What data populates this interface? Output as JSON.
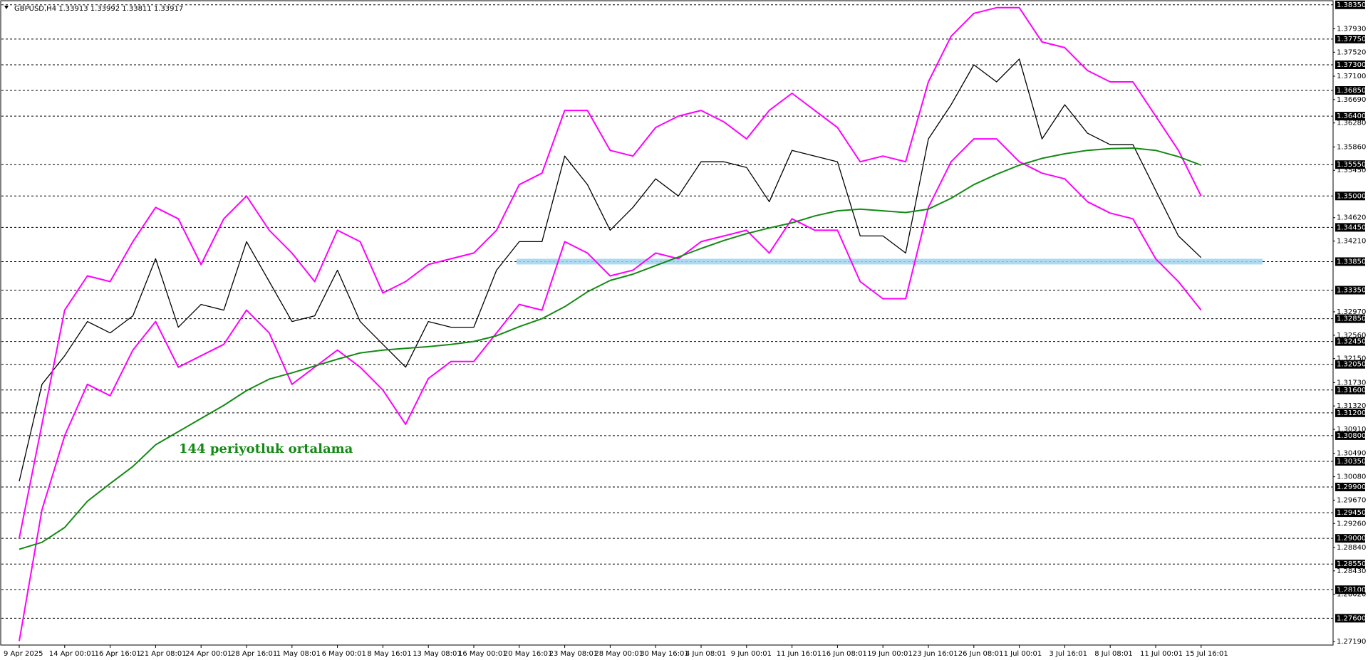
{
  "chart_data": {
    "type": "line",
    "title": "GBPUSD,H4  1.33913 1.33992 1.33811 1.33917",
    "annotation": "144 periyotluk ortalama",
    "categories": [
      "9 Apr 2025",
      null,
      "14 Apr 00:01",
      null,
      "16 Apr 16:01",
      null,
      "21 Apr 08:01",
      null,
      "24 Apr 00:01",
      null,
      "28 Apr 16:01",
      null,
      "1 May 08:01",
      null,
      "6 May 00:01",
      null,
      "8 May 16:01",
      null,
      "13 May 08:01",
      null,
      "16 May 00:01",
      null,
      "20 May 16:01",
      null,
      "23 May 08:01",
      null,
      "28 May 00:01",
      null,
      "30 May 16:01",
      null,
      "4 Jun 08:01",
      null,
      "9 Jun 00:01",
      null,
      "11 Jun 16:01",
      null,
      "16 Jun 08:01",
      null,
      "19 Jun 00:01",
      null,
      "23 Jun 16:01",
      null,
      "26 Jun 08:01",
      null,
      "1 Jul 00:01",
      null,
      "3 Jul 16:01",
      null,
      "8 Jul 08:01",
      null,
      "11 Jul 00:01",
      null,
      "15 Jul 16:01"
    ],
    "series": [
      {
        "color": "#000000",
        "values": [
          1.3,
          1.317,
          1.322,
          1.328,
          1.326,
          1.329,
          1.339,
          1.327,
          1.331,
          1.33,
          1.342,
          1.335,
          1.328,
          1.329,
          1.337,
          1.328,
          1.324,
          1.32,
          1.328,
          1.327,
          1.327,
          1.337,
          1.342,
          1.342,
          1.357,
          1.352,
          1.344,
          1.348,
          1.353,
          1.35,
          1.356,
          1.356,
          1.355,
          1.349,
          1.358,
          1.357,
          1.356,
          1.343,
          1.343,
          1.34,
          1.36,
          1.366,
          1.373,
          1.37,
          1.374,
          1.36,
          1.366,
          1.361,
          1.359,
          1.359,
          1.351,
          1.343,
          1.3392
        ]
      },
      {
        "color": "#ff00ff",
        "values": [
          1.29,
          1.31,
          1.33,
          1.336,
          1.335,
          1.342,
          1.348,
          1.346,
          1.338,
          1.346,
          1.35,
          1.344,
          1.34,
          1.335,
          1.344,
          1.342,
          1.333,
          1.335,
          1.338,
          1.339,
          1.34,
          1.344,
          1.352,
          1.354,
          1.365,
          1.365,
          1.358,
          1.357,
          1.362,
          1.364,
          1.365,
          1.363,
          1.36,
          1.365,
          1.368,
          1.365,
          1.362,
          1.356,
          1.357,
          1.356,
          1.37,
          1.378,
          1.382,
          1.383,
          1.383,
          1.377,
          1.376,
          1.372,
          1.37,
          1.37,
          1.364,
          1.358,
          1.35
        ]
      },
      {
        "color": "#ff00ff",
        "values": [
          1.272,
          1.295,
          1.308,
          1.317,
          1.315,
          1.323,
          1.328,
          1.32,
          1.322,
          1.324,
          1.33,
          1.326,
          1.317,
          1.32,
          1.323,
          1.32,
          1.316,
          1.31,
          1.318,
          1.321,
          1.321,
          1.326,
          1.331,
          1.33,
          1.342,
          1.34,
          1.336,
          1.337,
          1.34,
          1.339,
          1.342,
          1.343,
          1.344,
          1.34,
          1.346,
          1.344,
          1.344,
          1.335,
          1.332,
          1.332,
          1.348,
          1.356,
          1.36,
          1.36,
          1.356,
          1.354,
          1.353,
          1.349,
          1.347,
          1.346,
          1.339,
          1.335,
          1.33
        ]
      },
      {
        "color": "#138a13",
        "values": [
          1.2881,
          1.2893,
          1.2919,
          1.2965,
          1.2996,
          1.3026,
          1.3064,
          1.3087,
          1.311,
          1.3133,
          1.3159,
          1.3179,
          1.319,
          1.3202,
          1.3214,
          1.3225,
          1.323,
          1.3233,
          1.3236,
          1.324,
          1.3245,
          1.3255,
          1.3271,
          1.3285,
          1.3306,
          1.3332,
          1.3352,
          1.3363,
          1.3378,
          1.3393,
          1.3408,
          1.3422,
          1.3434,
          1.3444,
          1.3453,
          1.3465,
          1.3474,
          1.3477,
          1.3474,
          1.3471,
          1.3477,
          1.3496,
          1.352,
          1.3538,
          1.3554,
          1.3566,
          1.3574,
          1.358,
          1.3583,
          1.3584,
          1.358,
          1.3569,
          1.3554
        ]
      }
    ],
    "support_level": 1.3385,
    "support_color": "#9fd4ee",
    "ylim": [
      1.2713,
      1.3841
    ],
    "yticks": [
      {
        "value": 1.3793,
        "label": "1.37930"
      },
      {
        "value": 1.3752,
        "label": "1.37520"
      },
      {
        "value": 1.371,
        "label": "1.37100"
      },
      {
        "value": 1.3669,
        "label": "1.36690"
      },
      {
        "value": 1.3628,
        "label": "1.36280"
      },
      {
        "value": 1.3586,
        "label": "1.35860"
      },
      {
        "value": 1.3545,
        "label": "1.35450"
      },
      {
        "value": 1.3462,
        "label": "1.34620"
      },
      {
        "value": 1.3421,
        "label": "1.34210"
      },
      {
        "value": 1.3297,
        "label": "1.32970"
      },
      {
        "value": 1.3256,
        "label": "1.32560"
      },
      {
        "value": 1.3215,
        "label": "1.32150"
      },
      {
        "value": 1.3173,
        "label": "1.31730"
      },
      {
        "value": 1.3132,
        "label": "1.31320"
      },
      {
        "value": 1.3091,
        "label": "1.30910"
      },
      {
        "value": 1.3049,
        "label": "1.30490"
      },
      {
        "value": 1.3008,
        "label": "1.30080"
      },
      {
        "value": 1.2967,
        "label": "1.29670"
      },
      {
        "value": 1.2926,
        "label": "1.29260"
      },
      {
        "value": 1.2884,
        "label": "1.28840"
      },
      {
        "value": 1.2843,
        "label": "1.28430"
      },
      {
        "value": 1.2802,
        "label": "1.28020"
      },
      {
        "value": 1.2719,
        "label": "1.27190"
      }
    ],
    "levels": [
      {
        "value": 1.3835,
        "label": "1.38350"
      },
      {
        "value": 1.3775,
        "label": "1.37750"
      },
      {
        "value": 1.373,
        "label": "1.37300"
      },
      {
        "value": 1.3685,
        "label": "1.36850"
      },
      {
        "value": 1.364,
        "label": "1.36400"
      },
      {
        "value": 1.3555,
        "label": "1.35550"
      },
      {
        "value": 1.35,
        "label": "1.35000"
      },
      {
        "value": 1.3445,
        "label": "1.34450"
      },
      {
        "value": 1.3385,
        "label": "1.33850"
      },
      {
        "value": 1.3335,
        "label": "1.33350"
      },
      {
        "value": 1.3285,
        "label": "1.32850"
      },
      {
        "value": 1.3245,
        "label": "1.32450"
      },
      {
        "value": 1.3205,
        "label": "1.32050"
      },
      {
        "value": 1.316,
        "label": "1.31600"
      },
      {
        "value": 1.312,
        "label": "1.31200"
      },
      {
        "value": 1.308,
        "label": "1.30800"
      },
      {
        "value": 1.3035,
        "label": "1.30350"
      },
      {
        "value": 1.299,
        "label": "1.29900"
      },
      {
        "value": 1.2945,
        "label": "1.29450"
      },
      {
        "value": 1.29,
        "label": "1.29000"
      },
      {
        "value": 1.2855,
        "label": "1.28550"
      },
      {
        "value": 1.281,
        "label": "1.28100"
      },
      {
        "value": 1.276,
        "label": "1.27600"
      }
    ]
  }
}
